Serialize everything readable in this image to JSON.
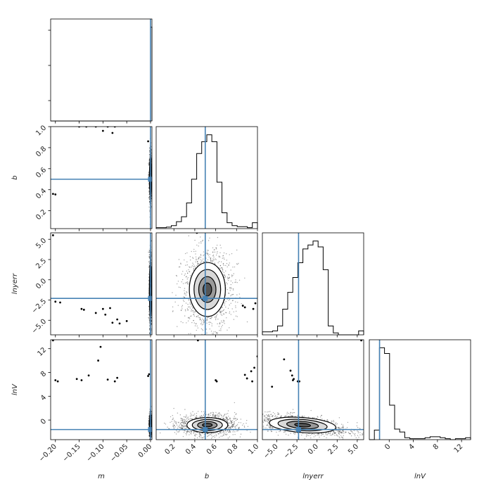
{
  "chart_data": {
    "type": "corner",
    "parameters": [
      "m",
      "b",
      "lnyerr",
      "lnV"
    ],
    "axis_labels": [
      "m",
      "b",
      "lnyerr",
      "lnV"
    ],
    "truths": {
      "m": 0.0,
      "b": 0.5,
      "lnyerr": -2.3,
      "lnV": -1.6
    },
    "ranges": {
      "m": [
        -0.21,
        0.003
      ],
      "b": [
        0.03,
        1.0
      ],
      "lnyerr": [
        -6.8,
        5.8
      ],
      "lnV": [
        -3.3,
        13.5
      ]
    },
    "ticks": {
      "m": [
        -0.2,
        -0.15,
        -0.1,
        -0.05,
        0.0
      ],
      "b": [
        0.2,
        0.4,
        0.6,
        0.8,
        1.0
      ],
      "lnyerr": [
        -5.0,
        -2.5,
        0.0,
        2.5,
        5.0
      ],
      "lnV": [
        0,
        4,
        8,
        12
      ]
    },
    "tick_labels": {
      "m": [
        "−0.20",
        "−0.15",
        "−0.10",
        "−0.05",
        "0.00"
      ],
      "b_x": [
        "0.2",
        "0.4",
        "0.6",
        "0.8",
        "1.0"
      ],
      "b_y": [
        "0.2",
        "0.4",
        "0.6",
        "0.8",
        "1.0"
      ],
      "lnyerr_x": [
        "−5.0",
        "−2.5",
        "0.0",
        "2.5",
        "5.0"
      ],
      "lnyerr_y": [
        "−5.0",
        "−2.5",
        "0.0",
        "2.5",
        "5.0"
      ],
      "lnV": [
        "0",
        "4",
        "8",
        "12"
      ]
    },
    "histograms": {
      "m": {
        "edges": [
          -0.21,
          0.0,
          0.003
        ],
        "counts": [
          0,
          1.0
        ]
      },
      "b": {
        "edges": [
          0.03,
          0.078,
          0.127,
          0.175,
          0.224,
          0.272,
          0.321,
          0.369,
          0.418,
          0.466,
          0.515,
          0.563,
          0.612,
          0.66,
          0.709,
          0.757,
          0.806,
          0.854,
          0.903,
          0.951,
          1.0
        ],
        "counts": [
          0.01,
          0.01,
          0.015,
          0.03,
          0.07,
          0.12,
          0.26,
          0.5,
          0.76,
          0.88,
          0.95,
          0.88,
          0.47,
          0.16,
          0.06,
          0.03,
          0.02,
          0.02,
          0.01,
          0.06
        ]
      },
      "lnyerr": {
        "edges": [
          -6.8,
          -6.17,
          -5.54,
          -4.91,
          -4.28,
          -3.65,
          -3.02,
          -2.39,
          -1.76,
          -1.13,
          -0.5,
          0.13,
          0.76,
          1.39,
          2.02,
          2.65,
          3.28,
          3.91,
          4.54,
          5.17,
          5.8
        ],
        "counts": [
          0.03,
          0.03,
          0.04,
          0.09,
          0.26,
          0.43,
          0.58,
          0.73,
          0.87,
          0.91,
          0.95,
          0.89,
          0.66,
          0.09,
          0.02,
          0.0,
          0.0,
          0.0,
          0.0,
          0.04
        ]
      },
      "lnV": {
        "edges": [
          -3.3,
          -2.46,
          -1.62,
          -0.78,
          0.06,
          0.9,
          1.74,
          2.58,
          3.42,
          4.26,
          5.1,
          5.94,
          6.78,
          7.62,
          8.46,
          9.3,
          10.14,
          10.98,
          11.82,
          12.66,
          13.5
        ],
        "counts": [
          0.0,
          0.1,
          0.96,
          0.9,
          0.36,
          0.11,
          0.08,
          0.02,
          0.01,
          0.01,
          0.01,
          0.02,
          0.03,
          0.03,
          0.02,
          0.01,
          0.0,
          0.01,
          0.01,
          0.02
        ]
      }
    },
    "cores": {
      "m_b": {
        "cx": 0.0,
        "cy": 0.52,
        "sx": 0.0008,
        "sy": 0.07,
        "rho": 0.0
      },
      "m_lnyerr": {
        "cx": 0.0,
        "cy": -1.3,
        "sx": 0.0008,
        "sy": 1.4,
        "rho": 0.0
      },
      "m_lnV": {
        "cx": 0.0,
        "cy": -0.9,
        "sx": 0.0008,
        "sy": 0.6,
        "rho": 0.0
      },
      "b_lnyerr": {
        "cx": 0.52,
        "cy": -1.2,
        "sx": 0.075,
        "sy": 1.45,
        "rho": 0.0
      },
      "b_lnV": {
        "cx": 0.52,
        "cy": -0.85,
        "sx": 0.085,
        "sy": 0.55,
        "rho": 0.0
      },
      "lnyerr_lnV": {
        "cx": -1.8,
        "cy": -0.85,
        "sx": 1.8,
        "sy": 0.55,
        "rho": -0.55
      }
    },
    "outlier_points": {
      "m_b": [
        [
          -0.205,
          0.36
        ],
        [
          -0.2,
          0.355
        ],
        [
          -0.15,
          1.0
        ],
        [
          -0.135,
          1.0
        ],
        [
          -0.115,
          1.0
        ],
        [
          -0.09,
          1.0
        ],
        [
          -0.075,
          1.0
        ],
        [
          -0.1,
          0.96
        ],
        [
          -0.08,
          0.94
        ],
        [
          -0.005,
          0.86
        ]
      ],
      "m_lnyerr": [
        [
          -0.205,
          5.5
        ],
        [
          -0.2,
          -2.7
        ],
        [
          -0.19,
          -2.8
        ],
        [
          -0.145,
          -3.6
        ],
        [
          -0.14,
          -3.7
        ],
        [
          -0.115,
          -4.1
        ],
        [
          -0.1,
          -3.6
        ],
        [
          -0.095,
          -4.3
        ],
        [
          -0.085,
          -3.5
        ],
        [
          -0.07,
          -4.9
        ],
        [
          -0.08,
          -5.3
        ],
        [
          -0.065,
          -5.4
        ],
        [
          -0.05,
          -5.1
        ]
      ],
      "m_lnV": [
        [
          -0.205,
          13.4
        ],
        [
          -0.2,
          6.7
        ],
        [
          -0.195,
          6.5
        ],
        [
          -0.155,
          6.9
        ],
        [
          -0.145,
          6.7
        ],
        [
          -0.13,
          7.5
        ],
        [
          -0.11,
          10.0
        ],
        [
          -0.105,
          12.3
        ],
        [
          -0.09,
          6.8
        ],
        [
          -0.075,
          6.5
        ],
        [
          -0.07,
          7.1
        ],
        [
          -0.005,
          7.4
        ],
        [
          -0.003,
          7.7
        ]
      ],
      "b_lnyerr": [
        [
          0.42,
          5.8
        ],
        [
          0.86,
          -3.2
        ],
        [
          0.88,
          -3.4
        ],
        [
          0.96,
          -3.6
        ],
        [
          0.98,
          -2.9
        ]
      ],
      "b_lnV": [
        [
          0.43,
          13.4
        ],
        [
          0.6,
          6.7
        ],
        [
          0.61,
          6.5
        ],
        [
          0.88,
          7.6
        ],
        [
          0.9,
          7.0
        ],
        [
          0.94,
          8.2
        ],
        [
          0.97,
          8.8
        ],
        [
          1.0,
          10.7
        ],
        [
          0.95,
          6.5
        ]
      ],
      "lnyerr_lnV": [
        [
          -5.6,
          5.6
        ],
        [
          -3.3,
          8.3
        ],
        [
          -3.1,
          7.5
        ],
        [
          -3.0,
          6.7
        ],
        [
          -2.9,
          6.9
        ],
        [
          -2.4,
          6.5
        ],
        [
          -2.2,
          6.5
        ],
        [
          -4.1,
          10.2
        ],
        [
          5.5,
          13.4
        ]
      ]
    }
  }
}
